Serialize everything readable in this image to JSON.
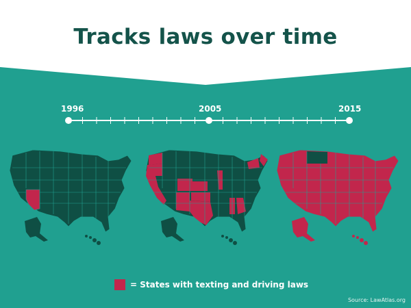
{
  "title": "Tracks laws over time",
  "timeline": {
    "start_year": "1996",
    "mid_year": "2005",
    "end_year": "2015"
  },
  "maps": [
    {
      "year": "1996",
      "highlighted": [
        "Arizona"
      ]
    },
    {
      "year": "2005",
      "highlighted": [
        "Washington",
        "Oregon",
        "California",
        "Colorado",
        "New Mexico",
        "Kansas",
        "Oklahoma",
        "Texas",
        "Illinois",
        "Alabama",
        "Georgia",
        "New York",
        "Maine"
      ]
    },
    {
      "year": "2015",
      "highlighted": [
        "most states"
      ],
      "not_highlighted": [
        "Montana",
        "Arizona"
      ]
    }
  ],
  "legend": {
    "label": "= States with texting and driving laws"
  },
  "source": "Source: LawAtlas.org",
  "colors": {
    "background_teal": "#20a090",
    "map_dark": "#0f4f44",
    "highlight": "#c2264c",
    "title": "#14534a",
    "white": "#ffffff"
  }
}
